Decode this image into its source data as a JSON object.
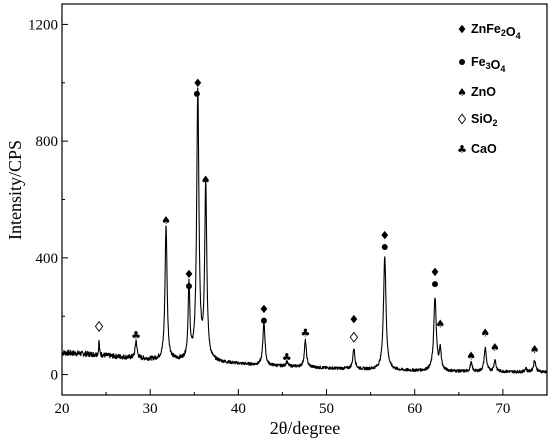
{
  "chart_data": {
    "type": "line",
    "title": "",
    "xlabel": "2θ/degree",
    "ylabel": "Intensity/CPS",
    "xlim": [
      20,
      75
    ],
    "ylim": [
      -70,
      1270
    ],
    "xticks": [
      20,
      30,
      40,
      50,
      60,
      70
    ],
    "yticks": [
      0,
      400,
      800,
      1200
    ],
    "grid": false,
    "legend_position": "top-right",
    "baseline": {
      "x": [
        20,
        22,
        24,
        26,
        28,
        30,
        31,
        32.5,
        33.5,
        34,
        36.8,
        37.5,
        38.5,
        40,
        42,
        44,
        46,
        48,
        50,
        52,
        54,
        56,
        58,
        60,
        62,
        64,
        66,
        68,
        70,
        72,
        74,
        75
      ],
      "y": [
        75,
        72,
        68,
        62,
        57,
        52,
        50,
        48,
        47,
        46,
        44,
        42,
        40,
        37,
        33,
        30,
        28,
        25,
        22,
        20,
        18,
        16,
        14,
        13,
        12,
        11,
        10,
        10,
        10,
        9,
        9,
        9
      ]
    },
    "peaks": [
      {
        "x": 24.2,
        "y": 50,
        "w": 0.05
      },
      {
        "x": 28.4,
        "y": 60,
        "w": 0.12
      },
      {
        "x": 31.8,
        "y": 460,
        "w": 0.14
      },
      {
        "x": 34.4,
        "y": 250,
        "w": 0.12
      },
      {
        "x": 35.4,
        "y": 920,
        "w": 0.15
      },
      {
        "x": 36.3,
        "y": 600,
        "w": 0.14
      },
      {
        "x": 42.9,
        "y": 150,
        "w": 0.14
      },
      {
        "x": 45.5,
        "y": 15,
        "w": 0.12
      },
      {
        "x": 47.6,
        "y": 90,
        "w": 0.14
      },
      {
        "x": 53.1,
        "y": 70,
        "w": 0.14
      },
      {
        "x": 56.6,
        "y": 390,
        "w": 0.17
      },
      {
        "x": 62.3,
        "y": 250,
        "w": 0.17
      },
      {
        "x": 62.9,
        "y": 70,
        "w": 0.13
      },
      {
        "x": 66.4,
        "y": 30,
        "w": 0.13
      },
      {
        "x": 68.0,
        "y": 80,
        "w": 0.15
      },
      {
        "x": 69.1,
        "y": 40,
        "w": 0.13
      },
      {
        "x": 72.6,
        "y": 12,
        "w": 0.12
      },
      {
        "x": 73.6,
        "y": 40,
        "w": 0.15
      }
    ],
    "phase_markers": [
      {
        "phase": "ZnFe2O4",
        "x": 35.4,
        "y": 1000
      },
      {
        "phase": "ZnFe2O4",
        "x": 34.4,
        "y": 345
      },
      {
        "phase": "ZnFe2O4",
        "x": 42.9,
        "y": 225
      },
      {
        "phase": "ZnFe2O4",
        "x": 53.1,
        "y": 190
      },
      {
        "phase": "ZnFe2O4",
        "x": 56.6,
        "y": 478
      },
      {
        "phase": "ZnFe2O4",
        "x": 62.3,
        "y": 352
      },
      {
        "phase": "Fe3O4",
        "x": 35.3,
        "y": 962
      },
      {
        "phase": "Fe3O4",
        "x": 34.4,
        "y": 303
      },
      {
        "phase": "Fe3O4",
        "x": 42.9,
        "y": 185
      },
      {
        "phase": "Fe3O4",
        "x": 56.6,
        "y": 437
      },
      {
        "phase": "Fe3O4",
        "x": 62.3,
        "y": 310
      },
      {
        "phase": "ZnO",
        "x": 31.8,
        "y": 530
      },
      {
        "phase": "ZnO",
        "x": 36.3,
        "y": 668
      },
      {
        "phase": "ZnO",
        "x": 62.9,
        "y": 175
      },
      {
        "phase": "ZnO",
        "x": 66.4,
        "y": 65
      },
      {
        "phase": "ZnO",
        "x": 68.0,
        "y": 145
      },
      {
        "phase": "ZnO",
        "x": 69.1,
        "y": 95
      },
      {
        "phase": "ZnO",
        "x": 73.6,
        "y": 88
      },
      {
        "phase": "SiO2",
        "x": 24.2,
        "y": 165
      },
      {
        "phase": "SiO2",
        "x": 53.1,
        "y": 128
      },
      {
        "phase": "CaO",
        "x": 28.4,
        "y": 135
      },
      {
        "phase": "CaO",
        "x": 45.5,
        "y": 60
      },
      {
        "phase": "CaO",
        "x": 47.6,
        "y": 145
      }
    ],
    "legend": [
      {
        "phase": "ZnFe2O4",
        "label": "ZnFe",
        "sub1": "2",
        "mid": "O",
        "sub2": "4"
      },
      {
        "phase": "Fe3O4",
        "label": "Fe",
        "sub1": "3",
        "mid": "O",
        "sub2": "4"
      },
      {
        "phase": "ZnO",
        "label": "ZnO",
        "sub1": "",
        "mid": "",
        "sub2": ""
      },
      {
        "phase": "SiO2",
        "label": "SiO",
        "sub1": "2",
        "mid": "",
        "sub2": ""
      },
      {
        "phase": "CaO",
        "label": "CaO",
        "sub1": "",
        "mid": "",
        "sub2": ""
      }
    ],
    "marker_icons": {
      "ZnFe2O4": "filled-diamond-icon",
      "Fe3O4": "filled-circle-icon",
      "ZnO": "spade-icon",
      "SiO2": "open-diamond-icon",
      "CaO": "club-icon"
    },
    "colors": {
      "line": "#000000",
      "background": "#ffffff"
    }
  }
}
